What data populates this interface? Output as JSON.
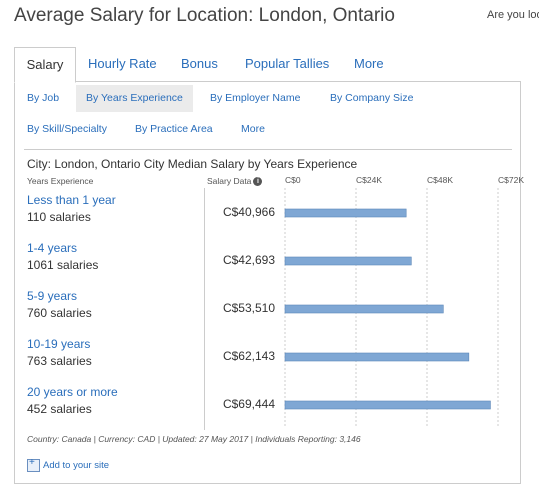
{
  "page_title": "Average Salary for Location: London, Ontario",
  "top_right_text": "Are you loo",
  "tabs": [
    {
      "label": "Salary",
      "active": true
    },
    {
      "label": "Hourly Rate",
      "active": false
    },
    {
      "label": "Bonus",
      "active": false
    },
    {
      "label": "Popular Tallies",
      "active": false
    },
    {
      "label": "More",
      "active": false
    }
  ],
  "subnav": [
    {
      "label": "By Job",
      "active": false
    },
    {
      "label": "By Years Experience",
      "active": true
    },
    {
      "label": "By Employer Name",
      "active": false
    },
    {
      "label": "By Company Size",
      "active": false
    },
    {
      "label": "By Skill/Specialty",
      "active": false
    },
    {
      "label": "By Practice Area",
      "active": false
    },
    {
      "label": "More",
      "active": false
    }
  ],
  "table": {
    "title": "City: London, Ontario City Median Salary by Years Experience",
    "col_experience": "Years Experience",
    "col_salary": "Salary Data",
    "info_icon": "info-icon"
  },
  "chart_data": {
    "type": "bar",
    "orientation": "horizontal",
    "xlim": [
      0,
      72000
    ],
    "x_ticks": [
      "C$0",
      "C$24K",
      "C$48K",
      "C$72K"
    ],
    "x_tick_values": [
      0,
      24000,
      48000,
      72000
    ],
    "categories": [
      "Less than 1 year",
      "1-4 years",
      "5-9 years",
      "10-19 years",
      "20 years or more"
    ],
    "counts": [
      "110 salaries",
      "1061 salaries",
      "760 salaries",
      "763 salaries",
      "452 salaries"
    ],
    "value_labels": [
      "C$40,966",
      "C$42,693",
      "C$53,510",
      "C$62,143",
      "C$69,444"
    ],
    "values": [
      40966,
      42693,
      53510,
      62143,
      69444
    ],
    "grid": true,
    "bar_color": "#7fa7d4"
  },
  "footer": {
    "note": "Country: Canada | Currency: CAD | Updated: 27 May 2017 | Individuals Reporting: 3,146",
    "add_site": "Add to your site"
  }
}
